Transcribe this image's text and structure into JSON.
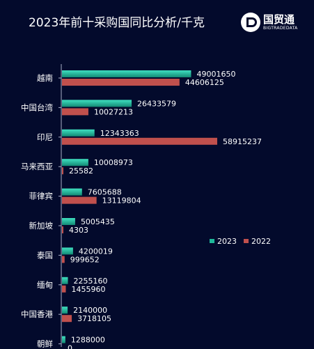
{
  "title": "2023年前十采购国同比分析/千克",
  "logo": {
    "name": "国贸通",
    "sub": "BIGTRADEDATA"
  },
  "chart_data": {
    "type": "bar",
    "orientation": "horizontal",
    "title": "2023年前十采购国同比分析/千克",
    "categories": [
      "越南",
      "中国台湾",
      "印尼",
      "马来西亚",
      "菲律宾",
      "新加坡",
      "泰国",
      "缅甸",
      "中国香港",
      "朝鲜"
    ],
    "series": [
      {
        "name": "2023",
        "color": "#1fb89a",
        "values": [
          49001650,
          26433579,
          12343363,
          10008973,
          7605688,
          5005435,
          4200019,
          2255160,
          2140000,
          1288000
        ]
      },
      {
        "name": "2022",
        "color": "#c0504d",
        "values": [
          44606125,
          10027213,
          58915237,
          25582,
          13119804,
          4303,
          999652,
          1455960,
          3718105,
          0
        ]
      }
    ],
    "xlim": [
      0,
      70000000
    ],
    "legend": "right-middle",
    "grid": false,
    "data_labels": true
  },
  "colors": {
    "background": "#030a2c",
    "text": "#ffffff",
    "axis": "#aab0c8"
  }
}
